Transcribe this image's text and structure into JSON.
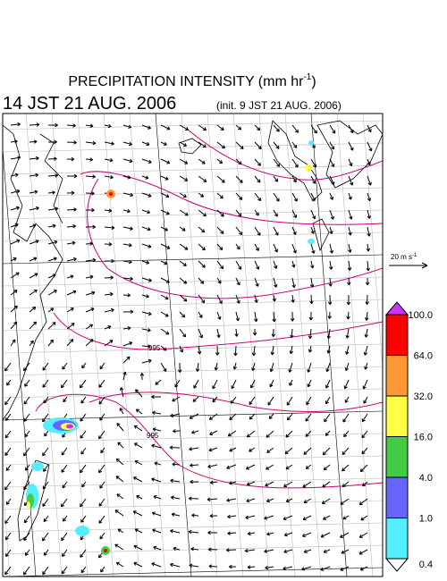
{
  "header": {
    "title": "PRECIPITATION INTENSITY (mm hr",
    "title_sup": "-1",
    "title_end": ")",
    "valid_time": "14 JST 21 AUG. 2006",
    "init_time": "(init. 9 JST 21 AUG. 2006)"
  },
  "wind_scale": {
    "label": "20 m s",
    "label_sup": "-1"
  },
  "contour_labels": [
    "995",
    "995"
  ],
  "colorbar": {
    "labels": [
      "100.0",
      "64.0",
      "32.0",
      "16.0",
      "4.0",
      "1.0",
      "0.4"
    ],
    "colors": [
      "#cc33ff",
      "#ff0000",
      "#ff9933",
      "#ffff44",
      "#44cc44",
      "#6666ff",
      "#55eeff",
      "#ffffff"
    ]
  }
}
